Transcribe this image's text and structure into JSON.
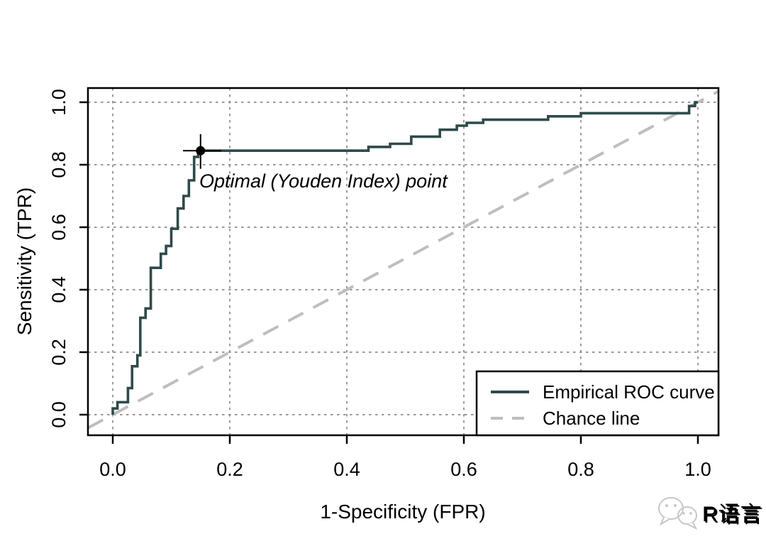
{
  "chart_data": {
    "type": "line",
    "title": "",
    "xlabel": "1-Specificity (FPR)",
    "ylabel": "Sensitivity (TPR)",
    "xlim": [
      0,
      1
    ],
    "ylim": [
      0,
      1
    ],
    "xticks": [
      0,
      0.2,
      0.4,
      0.6,
      0.8,
      1
    ],
    "yticks": [
      0,
      0.2,
      0.4,
      0.6,
      0.8,
      1
    ],
    "xtick_labels": [
      "0.0",
      "0.2",
      "0.4",
      "0.6",
      "0.8",
      "1.0"
    ],
    "ytick_labels": [
      "0.0",
      "0.2",
      "0.4",
      "0.6",
      "0.8",
      "1.0"
    ],
    "grid": "dotted full-frame at every 0.2",
    "legend_position": "bottom-right",
    "series": [
      {
        "name": "Empirical ROC curve",
        "type": "step",
        "line_style": "solid",
        "color": "#2F4A4A",
        "points": [
          [
            0,
            0
          ],
          [
            0,
            0.02
          ],
          [
            0.008,
            0.02
          ],
          [
            0.008,
            0.04
          ],
          [
            0.026,
            0.04
          ],
          [
            0.026,
            0.085
          ],
          [
            0.033,
            0.085
          ],
          [
            0.033,
            0.155
          ],
          [
            0.042,
            0.155
          ],
          [
            0.042,
            0.19
          ],
          [
            0.047,
            0.19
          ],
          [
            0.047,
            0.31
          ],
          [
            0.056,
            0.31
          ],
          [
            0.056,
            0.34
          ],
          [
            0.065,
            0.34
          ],
          [
            0.065,
            0.47
          ],
          [
            0.082,
            0.47
          ],
          [
            0.082,
            0.515
          ],
          [
            0.091,
            0.515
          ],
          [
            0.091,
            0.54
          ],
          [
            0.1,
            0.54
          ],
          [
            0.1,
            0.595
          ],
          [
            0.111,
            0.595
          ],
          [
            0.111,
            0.66
          ],
          [
            0.121,
            0.66
          ],
          [
            0.121,
            0.7
          ],
          [
            0.13,
            0.7
          ],
          [
            0.13,
            0.75
          ],
          [
            0.139,
            0.75
          ],
          [
            0.139,
            0.825
          ],
          [
            0.146,
            0.825
          ],
          [
            0.146,
            0.845
          ],
          [
            0.437,
            0.845
          ],
          [
            0.437,
            0.857
          ],
          [
            0.474,
            0.857
          ],
          [
            0.474,
            0.867
          ],
          [
            0.51,
            0.867
          ],
          [
            0.51,
            0.89
          ],
          [
            0.559,
            0.89
          ],
          [
            0.559,
            0.912
          ],
          [
            0.588,
            0.912
          ],
          [
            0.588,
            0.925
          ],
          [
            0.605,
            0.925
          ],
          [
            0.605,
            0.934
          ],
          [
            0.633,
            0.934
          ],
          [
            0.633,
            0.944
          ],
          [
            0.744,
            0.944
          ],
          [
            0.744,
            0.955
          ],
          [
            0.8,
            0.955
          ],
          [
            0.8,
            0.965
          ],
          [
            0.985,
            0.965
          ],
          [
            0.985,
            0.988
          ],
          [
            0.995,
            0.988
          ],
          [
            0.995,
            1
          ],
          [
            1,
            1
          ]
        ]
      },
      {
        "name": "Chance line",
        "type": "line",
        "line_style": "dashed",
        "color": "#BEBEBE",
        "extends_to_plot_edges": true,
        "points": [
          [
            0,
            0
          ],
          [
            1,
            1
          ]
        ]
      }
    ],
    "optimal_point": {
      "label": "Optimal (Youden Index) point",
      "x": 0.15,
      "y": 0.845,
      "ci_x": [
        0.12,
        0.185
      ],
      "ci_y": [
        0.787,
        0.898
      ],
      "marker": "filled-circle-with-crosshair",
      "color": "#000000"
    }
  },
  "legend": {
    "entries": [
      "Empirical ROC curve",
      "Chance line"
    ]
  },
  "watermark": {
    "label": "R语言",
    "icon": "wechat-icon"
  },
  "colors": {
    "curve": "#2F4A4A",
    "chance_line": "#BEBEBE",
    "gridline": "#8A8A8A",
    "axis": "#000000",
    "background": "#FFFFFF",
    "watermark_gray": "#C7C7C7",
    "watermark_white": "#FDFDFD"
  }
}
